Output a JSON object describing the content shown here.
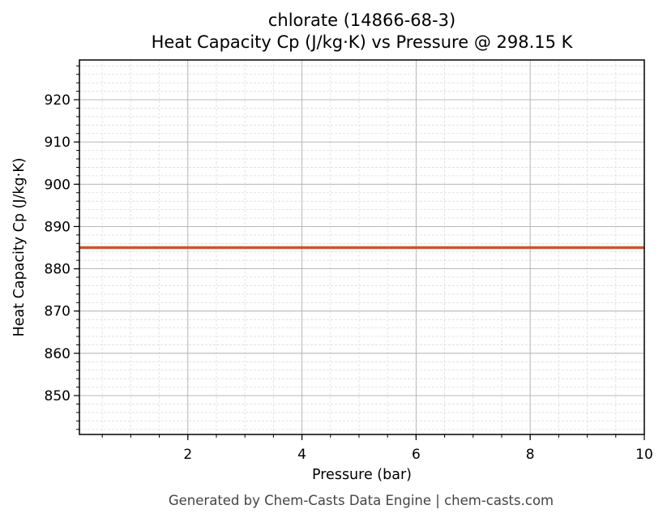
{
  "chart_data": {
    "type": "line",
    "title": "chlorate (14866-68-3)",
    "subtitle": "Heat Capacity Cp (J/kg·K) vs Pressure @ 298.15 K",
    "xlabel": "Pressure (bar)",
    "ylabel": "Heat Capacity Cp (J/kg·K)",
    "xlim": [
      0.1,
      10
    ],
    "ylim": [
      840.8,
      929.4
    ],
    "x_ticks": [
      2,
      4,
      6,
      8,
      10
    ],
    "y_ticks": [
      850,
      860,
      870,
      880,
      890,
      900,
      910,
      920
    ],
    "x_minor_step": 0.5,
    "y_minor_step": 2,
    "grid": true,
    "legend": null,
    "series": [
      {
        "name": "Cp",
        "color": "#d0522a",
        "x": [
          0.1,
          1,
          2,
          3,
          4,
          5,
          6,
          7,
          8,
          9,
          10
        ],
        "y": [
          885,
          885,
          885,
          885,
          885,
          885,
          885,
          885,
          885,
          885,
          885
        ]
      }
    ]
  },
  "header": {
    "title": "chlorate (14866-68-3)",
    "subtitle": "Heat Capacity Cp (J/kg·K) vs Pressure @ 298.15 K"
  },
  "axes": {
    "xlabel": "Pressure (bar)",
    "ylabel": "Heat Capacity Cp (J/kg·K)"
  },
  "footer": {
    "text": "Generated by Chem-Casts Data Engine | chem-casts.com"
  }
}
